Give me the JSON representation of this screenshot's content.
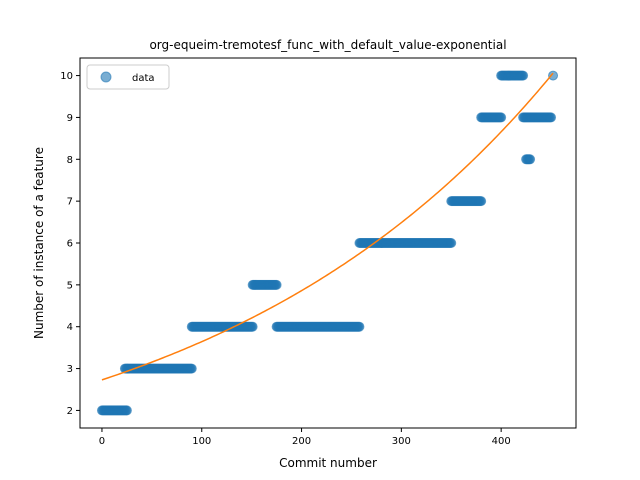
{
  "chart_data": {
    "type": "scatter",
    "title": "org-equeim-tremotesf_func_with_default_value-exponential",
    "xlabel": "Commit number",
    "ylabel": "Number of instance of a feature",
    "xlim": [
      -22,
      475
    ],
    "ylim": [
      1.58,
      10.42
    ],
    "xticks": [
      0,
      100,
      200,
      300,
      400
    ],
    "yticks": [
      2,
      3,
      4,
      5,
      6,
      7,
      8,
      9,
      10
    ],
    "grid": false,
    "legend": {
      "position": "top-left",
      "entries": [
        "data"
      ]
    },
    "colors": {
      "data": "#1f77b4",
      "fit": "#ff7f0e"
    },
    "series": [
      {
        "name": "data",
        "kind": "scatter",
        "segments": [
          {
            "x_start": 0,
            "x_end": 25,
            "y": 2
          },
          {
            "x_start": 23,
            "x_end": 90,
            "y": 3
          },
          {
            "x_start": 90,
            "x_end": 151,
            "y": 4
          },
          {
            "x_start": 151,
            "x_end": 175,
            "y": 5
          },
          {
            "x_start": 175,
            "x_end": 258,
            "y": 4
          },
          {
            "x_start": 258,
            "x_end": 350,
            "y": 6
          },
          {
            "x_start": 350,
            "x_end": 380,
            "y": 7
          },
          {
            "x_start": 380,
            "x_end": 400,
            "y": 9
          },
          {
            "x_start": 400,
            "x_end": 422,
            "y": 10
          },
          {
            "x_start": 422,
            "x_end": 450,
            "y": 9
          },
          {
            "x_start": 425,
            "x_end": 429,
            "y": 8
          },
          {
            "x_start": 452,
            "x_end": 452,
            "y": 10
          }
        ]
      },
      {
        "name": "",
        "kind": "line",
        "fit": {
          "form": "a*exp(b*x)",
          "a": 2.73,
          "b": 0.002885,
          "x_start": 0,
          "x_end": 452
        }
      }
    ]
  }
}
